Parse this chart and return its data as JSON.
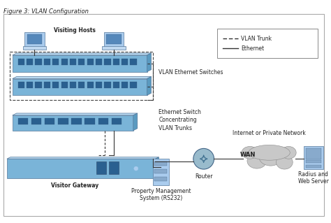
{
  "title": "Figure 3: VLAN Configuration",
  "sw_color": "#7ab4d8",
  "sw_top": "#b8d8f0",
  "sw_right": "#5a9ac0",
  "sw_port": "#2a6090",
  "gw_color": "#7ab4d8",
  "text_color": "#222222",
  "cloud_color": "#c8c8c8",
  "router_color": "#88aabb",
  "server_color": "#aaccee",
  "legend_dashed": "VLAN Trunk",
  "legend_solid": "Ethernet",
  "labels": {
    "visiting_hosts": "Visiting Hosts",
    "vlan_switches": "VLAN Ethernet Switches",
    "eth_switch": "Ethernet Switch\nConcentrating\nVLAN Trunks",
    "visitor_gateway": "Visitor Gateway",
    "router": "Router",
    "wan": "WAN",
    "internet": "Internet or Private Network",
    "radius": "Radius and\nWeb Server",
    "pms": "Property Management\nSystem (RS232)"
  }
}
